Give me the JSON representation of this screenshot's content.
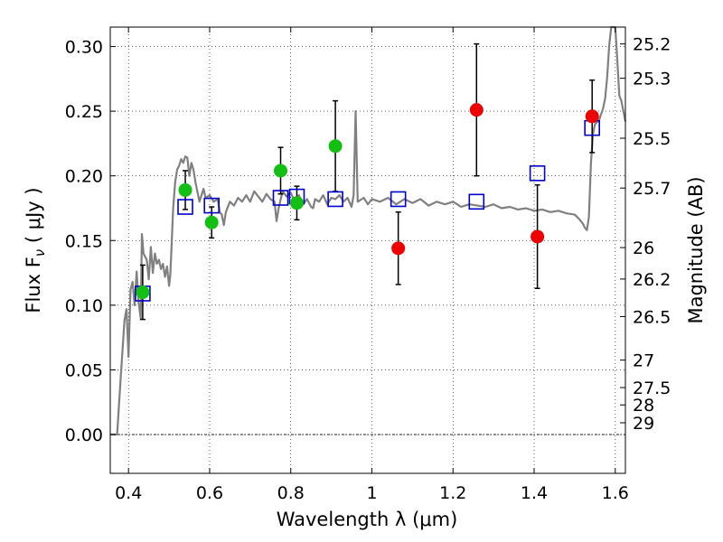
{
  "chart_data": {
    "type": "scatter",
    "xlabel": "Wavelength  λ (μm)",
    "ylabel": "Flux  F",
    "ylabel_sub": "ν",
    "ylabel_unit": "  ( μJy )",
    "y2label": "Magnitude (AB)",
    "xlim": [
      0.355,
      1.625
    ],
    "ylim": [
      -0.03,
      0.315
    ],
    "x_ticks": [
      0.4,
      0.6,
      0.8,
      1.0,
      1.2,
      1.4,
      1.6
    ],
    "x_tick_labels": [
      "0.4",
      "0.6",
      "0.8",
      "1",
      "1.2",
      "1.4",
      "1.6"
    ],
    "y_ticks": [
      0.0,
      0.05,
      0.1,
      0.15,
      0.2,
      0.25,
      0.3
    ],
    "y_tick_labels": [
      "0.00",
      "0.05",
      "0.10",
      "0.15",
      "0.20",
      "0.25",
      "0.30"
    ],
    "mag_ticks": [
      "25.2",
      "25.3",
      "25.5",
      "25.7",
      "26",
      "26.2",
      "26.5",
      "27",
      "27.5",
      "28",
      "29"
    ],
    "grid": true,
    "colors": {
      "green": "#12bf12",
      "red": "#ee0000",
      "model_box": "#0000cc",
      "sed": "#808080",
      "error": "#000000"
    },
    "green_points": [
      {
        "x": 0.435,
        "y": 0.11,
        "err": 0.021
      },
      {
        "x": 0.54,
        "y": 0.189,
        "err": 0.015
      },
      {
        "x": 0.605,
        "y": 0.164,
        "err": 0.012
      },
      {
        "x": 0.775,
        "y": 0.204,
        "err": 0.018
      },
      {
        "x": 0.815,
        "y": 0.179,
        "err": 0.013
      },
      {
        "x": 0.91,
        "y": 0.223,
        "err": 0.035
      }
    ],
    "red_points": [
      {
        "x": 1.065,
        "y": 0.144,
        "err": 0.028
      },
      {
        "x": 1.258,
        "y": 0.251,
        "err": 0.051
      },
      {
        "x": 1.408,
        "y": 0.153,
        "err": 0.04
      },
      {
        "x": 1.543,
        "y": 0.246,
        "err": 0.028
      }
    ],
    "model_points": [
      {
        "x": 0.435,
        "y": 0.109
      },
      {
        "x": 0.54,
        "y": 0.176
      },
      {
        "x": 0.605,
        "y": 0.177
      },
      {
        "x": 0.775,
        "y": 0.183
      },
      {
        "x": 0.815,
        "y": 0.184
      },
      {
        "x": 0.91,
        "y": 0.182
      },
      {
        "x": 1.065,
        "y": 0.182
      },
      {
        "x": 1.258,
        "y": 0.18
      },
      {
        "x": 1.408,
        "y": 0.202
      },
      {
        "x": 1.543,
        "y": 0.237
      }
    ],
    "sed_curve": [
      [
        0.355,
        0.0
      ],
      [
        0.372,
        0.0
      ],
      [
        0.38,
        0.04
      ],
      [
        0.39,
        0.088
      ],
      [
        0.395,
        0.097
      ],
      [
        0.4,
        0.06
      ],
      [
        0.405,
        0.112
      ],
      [
        0.41,
        0.118
      ],
      [
        0.415,
        0.1
      ],
      [
        0.42,
        0.126
      ],
      [
        0.425,
        0.102
      ],
      [
        0.43,
        0.09
      ],
      [
        0.433,
        0.155
      ],
      [
        0.437,
        0.14
      ],
      [
        0.445,
        0.135
      ],
      [
        0.45,
        0.12
      ],
      [
        0.455,
        0.145
      ],
      [
        0.46,
        0.125
      ],
      [
        0.465,
        0.14
      ],
      [
        0.47,
        0.132
      ],
      [
        0.475,
        0.135
      ],
      [
        0.48,
        0.128
      ],
      [
        0.485,
        0.132
      ],
      [
        0.49,
        0.122
      ],
      [
        0.495,
        0.13
      ],
      [
        0.5,
        0.115
      ],
      [
        0.503,
        0.123
      ],
      [
        0.505,
        0.137
      ],
      [
        0.51,
        0.175
      ],
      [
        0.515,
        0.195
      ],
      [
        0.52,
        0.205
      ],
      [
        0.525,
        0.208
      ],
      [
        0.53,
        0.213
      ],
      [
        0.535,
        0.21
      ],
      [
        0.54,
        0.215
      ],
      [
        0.545,
        0.214
      ],
      [
        0.55,
        0.2
      ],
      [
        0.555,
        0.21
      ],
      [
        0.56,
        0.205
      ],
      [
        0.565,
        0.195
      ],
      [
        0.575,
        0.18
      ],
      [
        0.585,
        0.19
      ],
      [
        0.59,
        0.183
      ],
      [
        0.6,
        0.185
      ],
      [
        0.61,
        0.18
      ],
      [
        0.62,
        0.182
      ],
      [
        0.625,
        0.172
      ],
      [
        0.63,
        0.17
      ],
      [
        0.635,
        0.162
      ],
      [
        0.64,
        0.172
      ],
      [
        0.65,
        0.18
      ],
      [
        0.66,
        0.177
      ],
      [
        0.67,
        0.183
      ],
      [
        0.68,
        0.18
      ],
      [
        0.69,
        0.185
      ],
      [
        0.7,
        0.18
      ],
      [
        0.71,
        0.188
      ],
      [
        0.72,
        0.184
      ],
      [
        0.73,
        0.18
      ],
      [
        0.74,
        0.186
      ],
      [
        0.75,
        0.182
      ],
      [
        0.76,
        0.18
      ],
      [
        0.765,
        0.165
      ],
      [
        0.77,
        0.175
      ],
      [
        0.78,
        0.188
      ],
      [
        0.79,
        0.184
      ],
      [
        0.8,
        0.187
      ],
      [
        0.81,
        0.18
      ],
      [
        0.82,
        0.185
      ],
      [
        0.83,
        0.178
      ],
      [
        0.84,
        0.182
      ],
      [
        0.85,
        0.176
      ],
      [
        0.855,
        0.175
      ],
      [
        0.86,
        0.182
      ],
      [
        0.87,
        0.18
      ],
      [
        0.88,
        0.185
      ],
      [
        0.89,
        0.178
      ],
      [
        0.9,
        0.183
      ],
      [
        0.91,
        0.182
      ],
      [
        0.92,
        0.185
      ],
      [
        0.93,
        0.18
      ],
      [
        0.94,
        0.183
      ],
      [
        0.95,
        0.176
      ],
      [
        0.955,
        0.185
      ],
      [
        0.96,
        0.25
      ],
      [
        0.965,
        0.18
      ],
      [
        0.98,
        0.183
      ],
      [
        0.99,
        0.178
      ],
      [
        1.0,
        0.182
      ],
      [
        1.02,
        0.18
      ],
      [
        1.04,
        0.183
      ],
      [
        1.06,
        0.178
      ],
      [
        1.08,
        0.182
      ],
      [
        1.1,
        0.179
      ],
      [
        1.12,
        0.182
      ],
      [
        1.14,
        0.177
      ],
      [
        1.16,
        0.18
      ],
      [
        1.18,
        0.178
      ],
      [
        1.2,
        0.18
      ],
      [
        1.22,
        0.176
      ],
      [
        1.24,
        0.178
      ],
      [
        1.26,
        0.177
      ],
      [
        1.28,
        0.176
      ],
      [
        1.3,
        0.178
      ],
      [
        1.32,
        0.175
      ],
      [
        1.34,
        0.176
      ],
      [
        1.36,
        0.174
      ],
      [
        1.38,
        0.175
      ],
      [
        1.4,
        0.173
      ],
      [
        1.42,
        0.174
      ],
      [
        1.44,
        0.172
      ],
      [
        1.46,
        0.173
      ],
      [
        1.48,
        0.171
      ],
      [
        1.5,
        0.17
      ],
      [
        1.51,
        0.167
      ],
      [
        1.52,
        0.163
      ],
      [
        1.525,
        0.16
      ],
      [
        1.53,
        0.158
      ],
      [
        1.535,
        0.168
      ],
      [
        1.54,
        0.21
      ],
      [
        1.545,
        0.232
      ],
      [
        1.55,
        0.24
      ],
      [
        1.56,
        0.243
      ],
      [
        1.57,
        0.252
      ],
      [
        1.575,
        0.26
      ],
      [
        1.58,
        0.276
      ],
      [
        1.585,
        0.3
      ],
      [
        1.59,
        0.315
      ],
      [
        1.6,
        0.315
      ],
      [
        1.605,
        0.29
      ],
      [
        1.61,
        0.262
      ],
      [
        1.615,
        0.258
      ],
      [
        1.62,
        0.25
      ],
      [
        1.625,
        0.242
      ]
    ]
  }
}
